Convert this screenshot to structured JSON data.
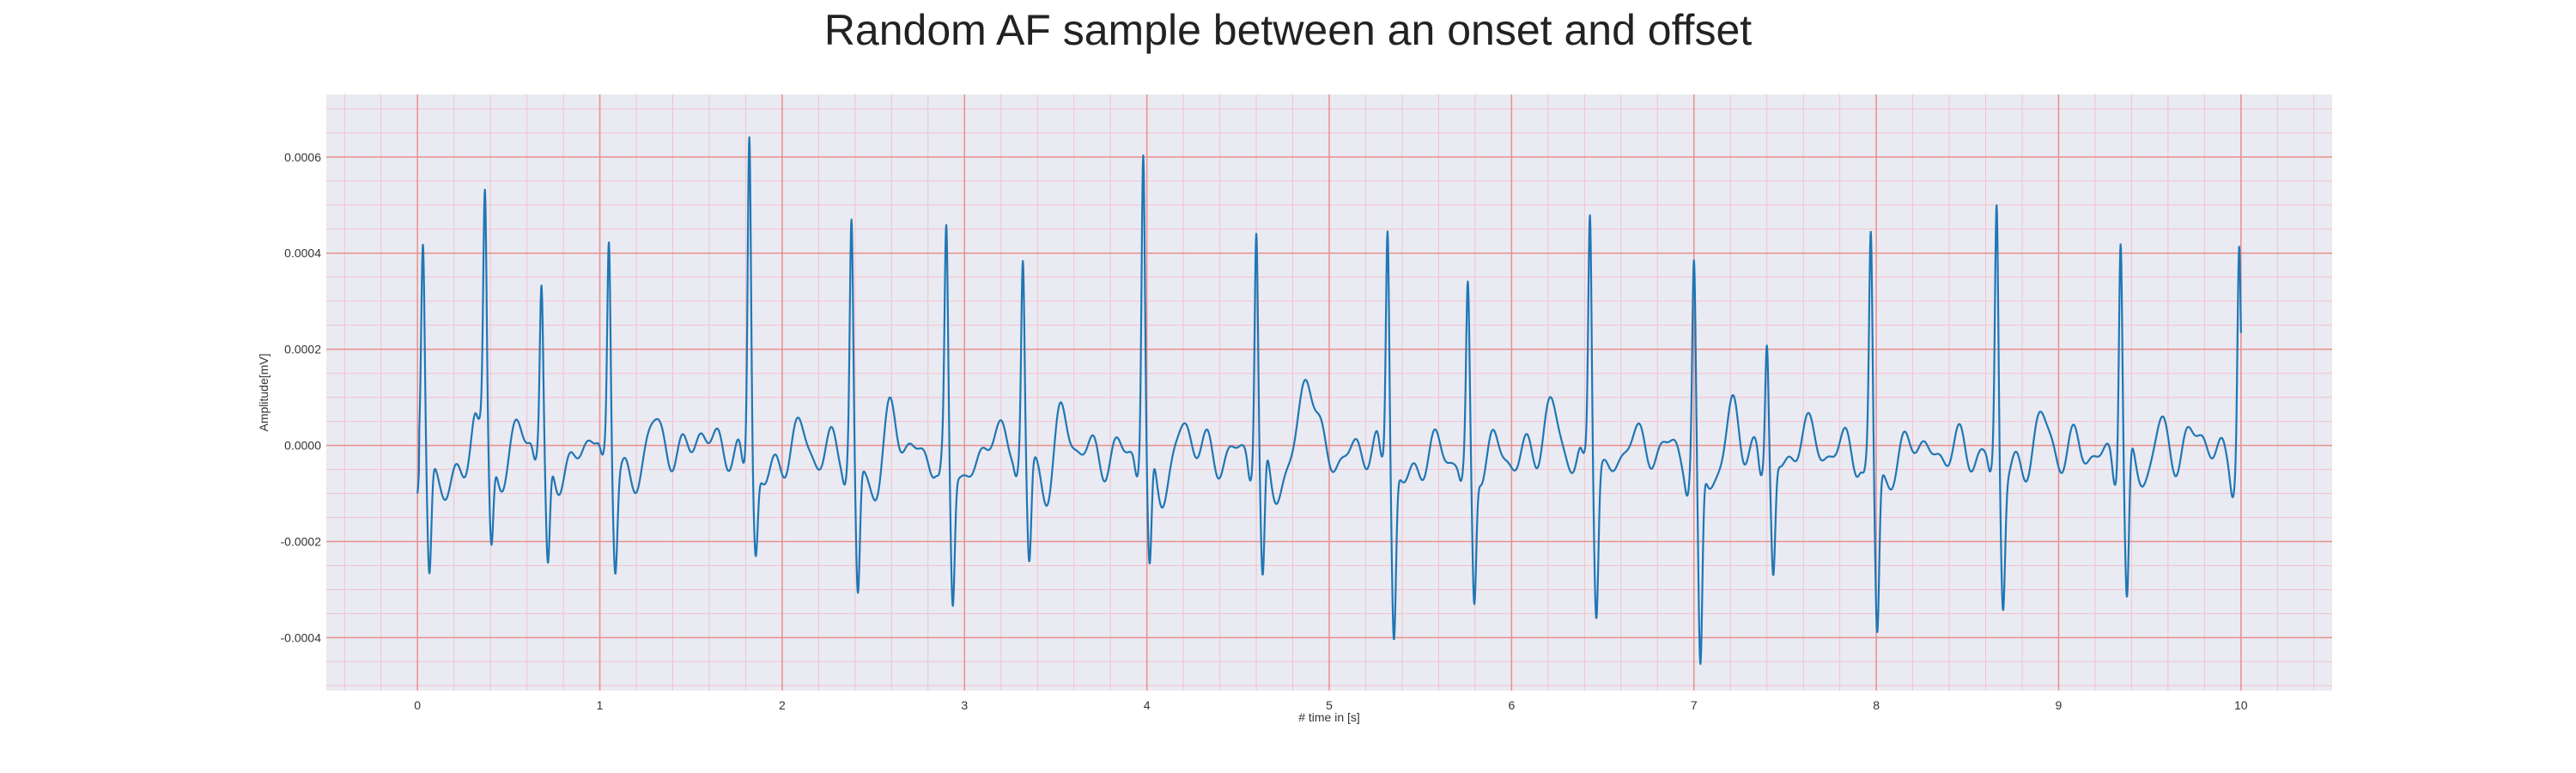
{
  "chart_data": {
    "type": "line",
    "title": "Random AF sample between an onset and offset",
    "xlabel": "# time in [s]",
    "ylabel": "Amplitude[mV]",
    "xlim": [
      -0.5,
      10.5
    ],
    "ylim": [
      -0.00051,
      0.00073
    ],
    "xticks": [
      0,
      1,
      2,
      3,
      4,
      5,
      6,
      7,
      8,
      9,
      10
    ],
    "yticks": [
      -0.0004,
      -0.0002,
      0.0,
      0.0002,
      0.0004,
      0.0006
    ],
    "xtick_labels": [
      "0",
      "1",
      "2",
      "3",
      "4",
      "5",
      "6",
      "7",
      "8",
      "9",
      "10"
    ],
    "ytick_labels": [
      "-0.0004",
      "-0.0002",
      "0.0000",
      "0.0002",
      "0.0004",
      "0.0006"
    ],
    "grid": true,
    "colors": {
      "background": "#eaeaf2",
      "major_grid": "#e8908f",
      "minor_grid": "#f0c4cc",
      "line": "#1f77b4"
    },
    "series": [
      {
        "color": "#1f77b4",
        "peaks": [
          {
            "x": 0.03,
            "y": 0.0004,
            "s": -0.00025
          },
          {
            "x": 0.37,
            "y": 0.00049,
            "s": -0.0002
          },
          {
            "x": 0.68,
            "y": 0.00033,
            "s": -0.00024
          },
          {
            "x": 1.05,
            "y": 0.00044,
            "s": -0.0002
          },
          {
            "x": 1.82,
            "y": 0.00068,
            "s": -0.00018
          },
          {
            "x": 2.38,
            "y": 0.00047,
            "s": -0.00029
          },
          {
            "x": 2.9,
            "y": 0.00043,
            "s": -0.0003
          },
          {
            "x": 3.32,
            "y": 0.0004,
            "s": -0.00022
          },
          {
            "x": 3.98,
            "y": 0.00062,
            "s": -0.00026
          },
          {
            "x": 4.6,
            "y": 0.00047,
            "s": -0.00029
          },
          {
            "x": 5.32,
            "y": 0.00049,
            "s": -0.00035
          },
          {
            "x": 5.76,
            "y": 0.00033,
            "s": -0.00031
          },
          {
            "x": 6.43,
            "y": 0.00051,
            "s": -0.0003
          },
          {
            "x": 7.0,
            "y": 0.00039,
            "s": -0.00045
          },
          {
            "x": 7.4,
            "y": 0.00025,
            "s": -0.00024
          },
          {
            "x": 7.97,
            "y": 0.00045,
            "s": -0.00035
          },
          {
            "x": 8.66,
            "y": 0.00052,
            "s": -0.00028
          },
          {
            "x": 9.34,
            "y": 0.00048,
            "s": -0.00032
          },
          {
            "x": 9.99,
            "y": 0.00043,
            "s": 0.00011
          }
        ],
        "waves": [
          {
            "x": 0.2,
            "y": -3e-05
          },
          {
            "x": 0.33,
            "y": 8e-05
          },
          {
            "x": 0.56,
            "y": 0.00011
          },
          {
            "x": 0.9,
            "y": 5e-05
          },
          {
            "x": 1.28,
            "y": 6e-05
          },
          {
            "x": 1.55,
            "y": 6e-05
          },
          {
            "x": 2.1,
            "y": 5e-05
          },
          {
            "x": 2.6,
            "y": 8e-05
          },
          {
            "x": 3.15,
            "y": 7e-05
          },
          {
            "x": 3.53,
            "y": 8e-05
          },
          {
            "x": 4.2,
            "y": 6e-05
          },
          {
            "x": 4.88,
            "y": 0.00017
          },
          {
            "x": 5.9,
            "y": 6e-05
          },
          {
            "x": 6.22,
            "y": 8e-05
          },
          {
            "x": 6.65,
            "y": 7e-05
          },
          {
            "x": 7.22,
            "y": 0.0001
          },
          {
            "x": 7.6,
            "y": 0.0001
          },
          {
            "x": 8.2,
            "y": 5e-05
          },
          {
            "x": 8.9,
            "y": 9e-05
          },
          {
            "x": 9.55,
            "y": 7e-05
          },
          {
            "x": 9.78,
            "y": 4e-05
          }
        ]
      }
    ]
  }
}
